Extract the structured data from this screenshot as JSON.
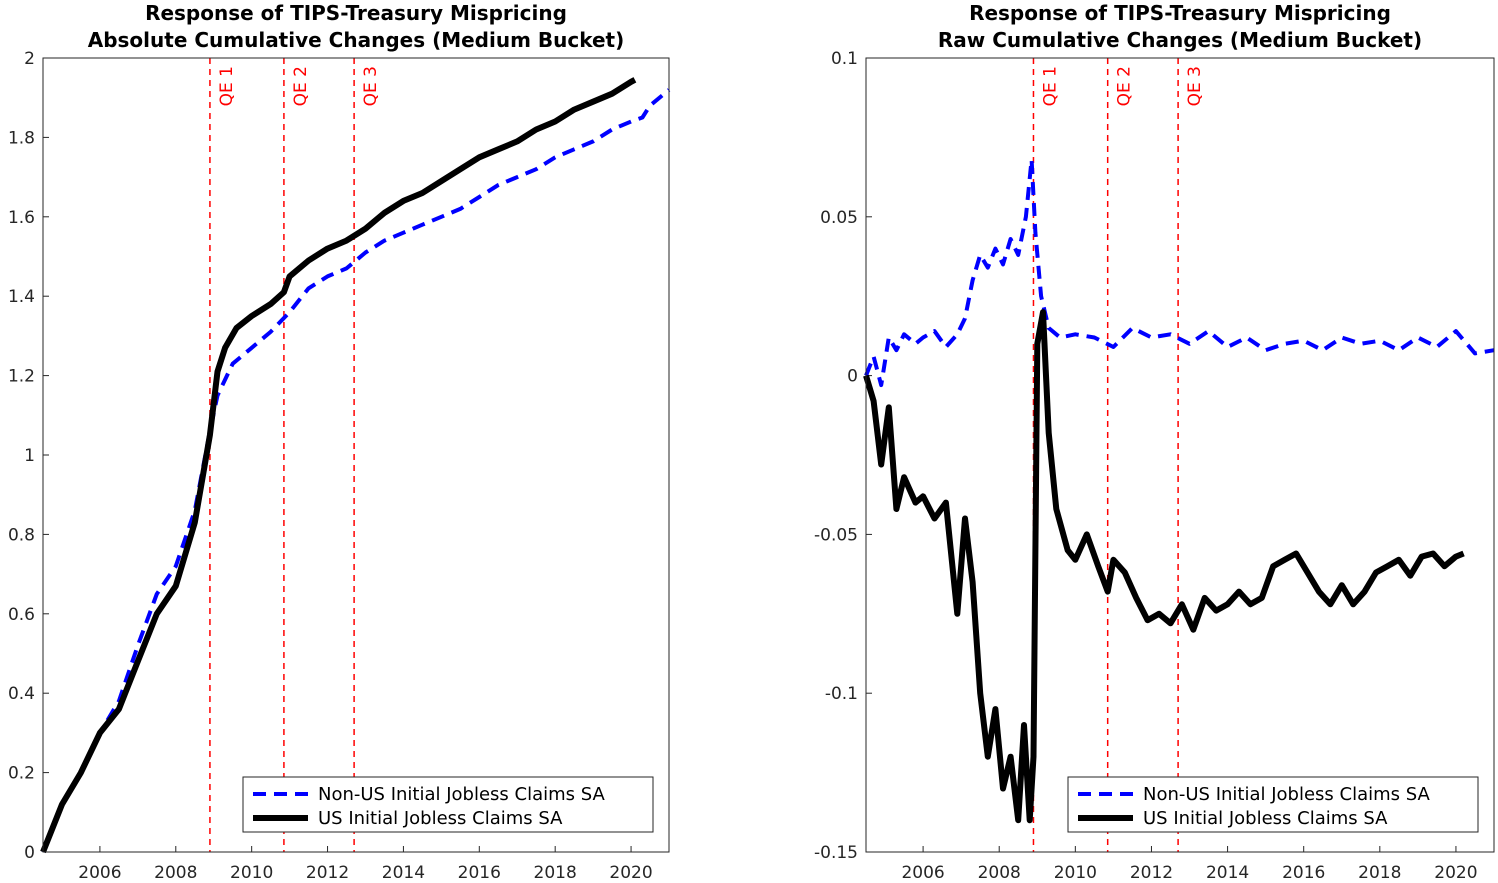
{
  "chart_data": [
    {
      "type": "line",
      "title_line1": "Response of TIPS-Treasury Mispricing",
      "title_line2": "Absolute Cumulative Changes (Medium Bucket)",
      "xlim": [
        2004.5,
        2021.0
      ],
      "ylim": [
        0,
        2
      ],
      "x_ticks": [
        2006,
        2008,
        2010,
        2012,
        2014,
        2016,
        2018,
        2020
      ],
      "x_tick_labels": [
        "2006",
        "2008",
        "2010",
        "2012",
        "2014",
        "2016",
        "2018",
        "2020"
      ],
      "y_ticks": [
        0,
        0.2,
        0.4,
        0.6,
        0.8,
        1,
        1.2,
        1.4,
        1.6,
        1.8,
        2
      ],
      "y_tick_labels": [
        "0",
        "0.2",
        "0.4",
        "0.6",
        "0.8",
        "1",
        "1.2",
        "1.4",
        "1.6",
        "1.8",
        "2"
      ],
      "events": [
        {
          "label": "QE 1",
          "x": 2008.9
        },
        {
          "label": "QE 2",
          "x": 2010.85
        },
        {
          "label": "QE 3",
          "x": 2012.7
        }
      ],
      "legend_position": "bottom-right",
      "series": [
        {
          "name": "Non-US Initial Jobless Claims SA",
          "color": "#0000ff",
          "style": "dashed",
          "x": [
            2004.5,
            2005,
            2005.5,
            2006,
            2006.5,
            2007,
            2007.5,
            2008,
            2008.5,
            2008.9,
            2009.1,
            2009.5,
            2010,
            2010.5,
            2011,
            2011.5,
            2012,
            2012.5,
            2013,
            2013.5,
            2014,
            2014.5,
            2015,
            2015.5,
            2016,
            2016.5,
            2017,
            2017.5,
            2018,
            2018.5,
            2019,
            2019.5,
            2020,
            2020.3,
            2020.5,
            2021
          ],
          "y": [
            0,
            0.12,
            0.2,
            0.3,
            0.38,
            0.52,
            0.65,
            0.72,
            0.86,
            1.06,
            1.15,
            1.23,
            1.27,
            1.31,
            1.36,
            1.42,
            1.45,
            1.47,
            1.51,
            1.54,
            1.56,
            1.58,
            1.6,
            1.62,
            1.65,
            1.68,
            1.7,
            1.72,
            1.75,
            1.77,
            1.79,
            1.82,
            1.84,
            1.85,
            1.88,
            1.92
          ]
        },
        {
          "name": "US Initial Jobless Claims SA",
          "color": "#000000",
          "style": "solid",
          "x": [
            2004.5,
            2005,
            2005.5,
            2006,
            2006.5,
            2007,
            2007.5,
            2008,
            2008.5,
            2008.9,
            2009.1,
            2009.3,
            2009.6,
            2010,
            2010.5,
            2010.85,
            2011,
            2011.5,
            2012,
            2012.5,
            2013,
            2013.5,
            2014,
            2014.5,
            2015,
            2015.5,
            2016,
            2016.5,
            2017,
            2017.5,
            2018,
            2018.5,
            2019,
            2019.5,
            2020,
            2020.1
          ],
          "y": [
            0,
            0.12,
            0.2,
            0.3,
            0.36,
            0.48,
            0.6,
            0.67,
            0.83,
            1.05,
            1.21,
            1.27,
            1.32,
            1.35,
            1.38,
            1.41,
            1.45,
            1.49,
            1.52,
            1.54,
            1.57,
            1.61,
            1.64,
            1.66,
            1.69,
            1.72,
            1.75,
            1.77,
            1.79,
            1.82,
            1.84,
            1.87,
            1.89,
            1.91,
            1.94,
            1.945
          ]
        }
      ]
    },
    {
      "type": "line",
      "title_line1": "Response of TIPS-Treasury Mispricing",
      "title_line2": "Raw Cumulative Changes (Medium Bucket)",
      "xlim": [
        2004.5,
        2021.0
      ],
      "ylim": [
        -0.15,
        0.1
      ],
      "x_ticks": [
        2006,
        2008,
        2010,
        2012,
        2014,
        2016,
        2018,
        2020
      ],
      "x_tick_labels": [
        "2006",
        "2008",
        "2010",
        "2012",
        "2014",
        "2016",
        "2018",
        "2020"
      ],
      "y_ticks": [
        -0.15,
        -0.1,
        -0.05,
        0,
        0.05,
        0.1
      ],
      "y_tick_labels": [
        "-0.15",
        "-0.1",
        "-0.05",
        "0",
        "0.05",
        "0.1"
      ],
      "events": [
        {
          "label": "QE 1",
          "x": 2008.9
        },
        {
          "label": "QE 2",
          "x": 2010.85
        },
        {
          "label": "QE 3",
          "x": 2012.7
        }
      ],
      "legend_position": "bottom-right",
      "series": [
        {
          "name": "Non-US Initial Jobless Claims SA",
          "color": "#0000ff",
          "style": "dashed",
          "x": [
            2004.5,
            2004.7,
            2004.9,
            2005.1,
            2005.3,
            2005.5,
            2005.8,
            2006.0,
            2006.3,
            2006.6,
            2006.9,
            2007.1,
            2007.3,
            2007.5,
            2007.7,
            2007.9,
            2008.1,
            2008.3,
            2008.5,
            2008.7,
            2008.85,
            2008.95,
            2009.1,
            2009.3,
            2009.6,
            2010,
            2010.5,
            2011,
            2011.5,
            2012,
            2012.5,
            2013,
            2013.5,
            2014,
            2014.5,
            2015,
            2015.5,
            2016,
            2016.5,
            2017,
            2017.5,
            2018,
            2018.5,
            2019,
            2019.5,
            2020,
            2020.5,
            2021
          ],
          "y": [
            0.0,
            0.006,
            -0.003,
            0.012,
            0.008,
            0.013,
            0.01,
            0.012,
            0.014,
            0.009,
            0.013,
            0.018,
            0.03,
            0.038,
            0.034,
            0.04,
            0.035,
            0.043,
            0.038,
            0.05,
            0.068,
            0.045,
            0.025,
            0.015,
            0.012,
            0.013,
            0.012,
            0.009,
            0.015,
            0.012,
            0.013,
            0.01,
            0.014,
            0.009,
            0.012,
            0.008,
            0.01,
            0.011,
            0.008,
            0.012,
            0.01,
            0.011,
            0.008,
            0.012,
            0.009,
            0.014,
            0.007,
            0.008
          ]
        },
        {
          "name": "US Initial Jobless Claims SA",
          "color": "#000000",
          "style": "solid",
          "x": [
            2004.5,
            2004.7,
            2004.9,
            2005.1,
            2005.3,
            2005.5,
            2005.8,
            2006.0,
            2006.3,
            2006.6,
            2006.9,
            2007.1,
            2007.3,
            2007.5,
            2007.7,
            2007.9,
            2008.1,
            2008.3,
            2008.5,
            2008.65,
            2008.8,
            2008.9,
            2009.0,
            2009.15,
            2009.3,
            2009.5,
            2009.8,
            2010.0,
            2010.3,
            2010.6,
            2010.85,
            2011.0,
            2011.3,
            2011.6,
            2011.9,
            2012.2,
            2012.5,
            2012.8,
            2013.1,
            2013.4,
            2013.7,
            2014.0,
            2014.3,
            2014.6,
            2014.9,
            2015.2,
            2015.5,
            2015.8,
            2016.1,
            2016.4,
            2016.7,
            2017.0,
            2017.3,
            2017.6,
            2017.9,
            2018.2,
            2018.5,
            2018.8,
            2019.1,
            2019.4,
            2019.7,
            2020.0,
            2020.2
          ],
          "y": [
            0.0,
            -0.008,
            -0.028,
            -0.01,
            -0.042,
            -0.032,
            -0.04,
            -0.038,
            -0.045,
            -0.04,
            -0.075,
            -0.045,
            -0.065,
            -0.1,
            -0.12,
            -0.105,
            -0.13,
            -0.12,
            -0.14,
            -0.11,
            -0.14,
            -0.12,
            0.01,
            0.02,
            -0.018,
            -0.042,
            -0.055,
            -0.058,
            -0.05,
            -0.06,
            -0.068,
            -0.058,
            -0.062,
            -0.07,
            -0.077,
            -0.075,
            -0.078,
            -0.072,
            -0.08,
            -0.07,
            -0.074,
            -0.072,
            -0.068,
            -0.072,
            -0.07,
            -0.06,
            -0.058,
            -0.056,
            -0.062,
            -0.068,
            -0.072,
            -0.066,
            -0.072,
            -0.068,
            -0.062,
            -0.06,
            -0.058,
            -0.063,
            -0.057,
            -0.056,
            -0.06,
            -0.057,
            -0.056
          ]
        }
      ]
    }
  ]
}
